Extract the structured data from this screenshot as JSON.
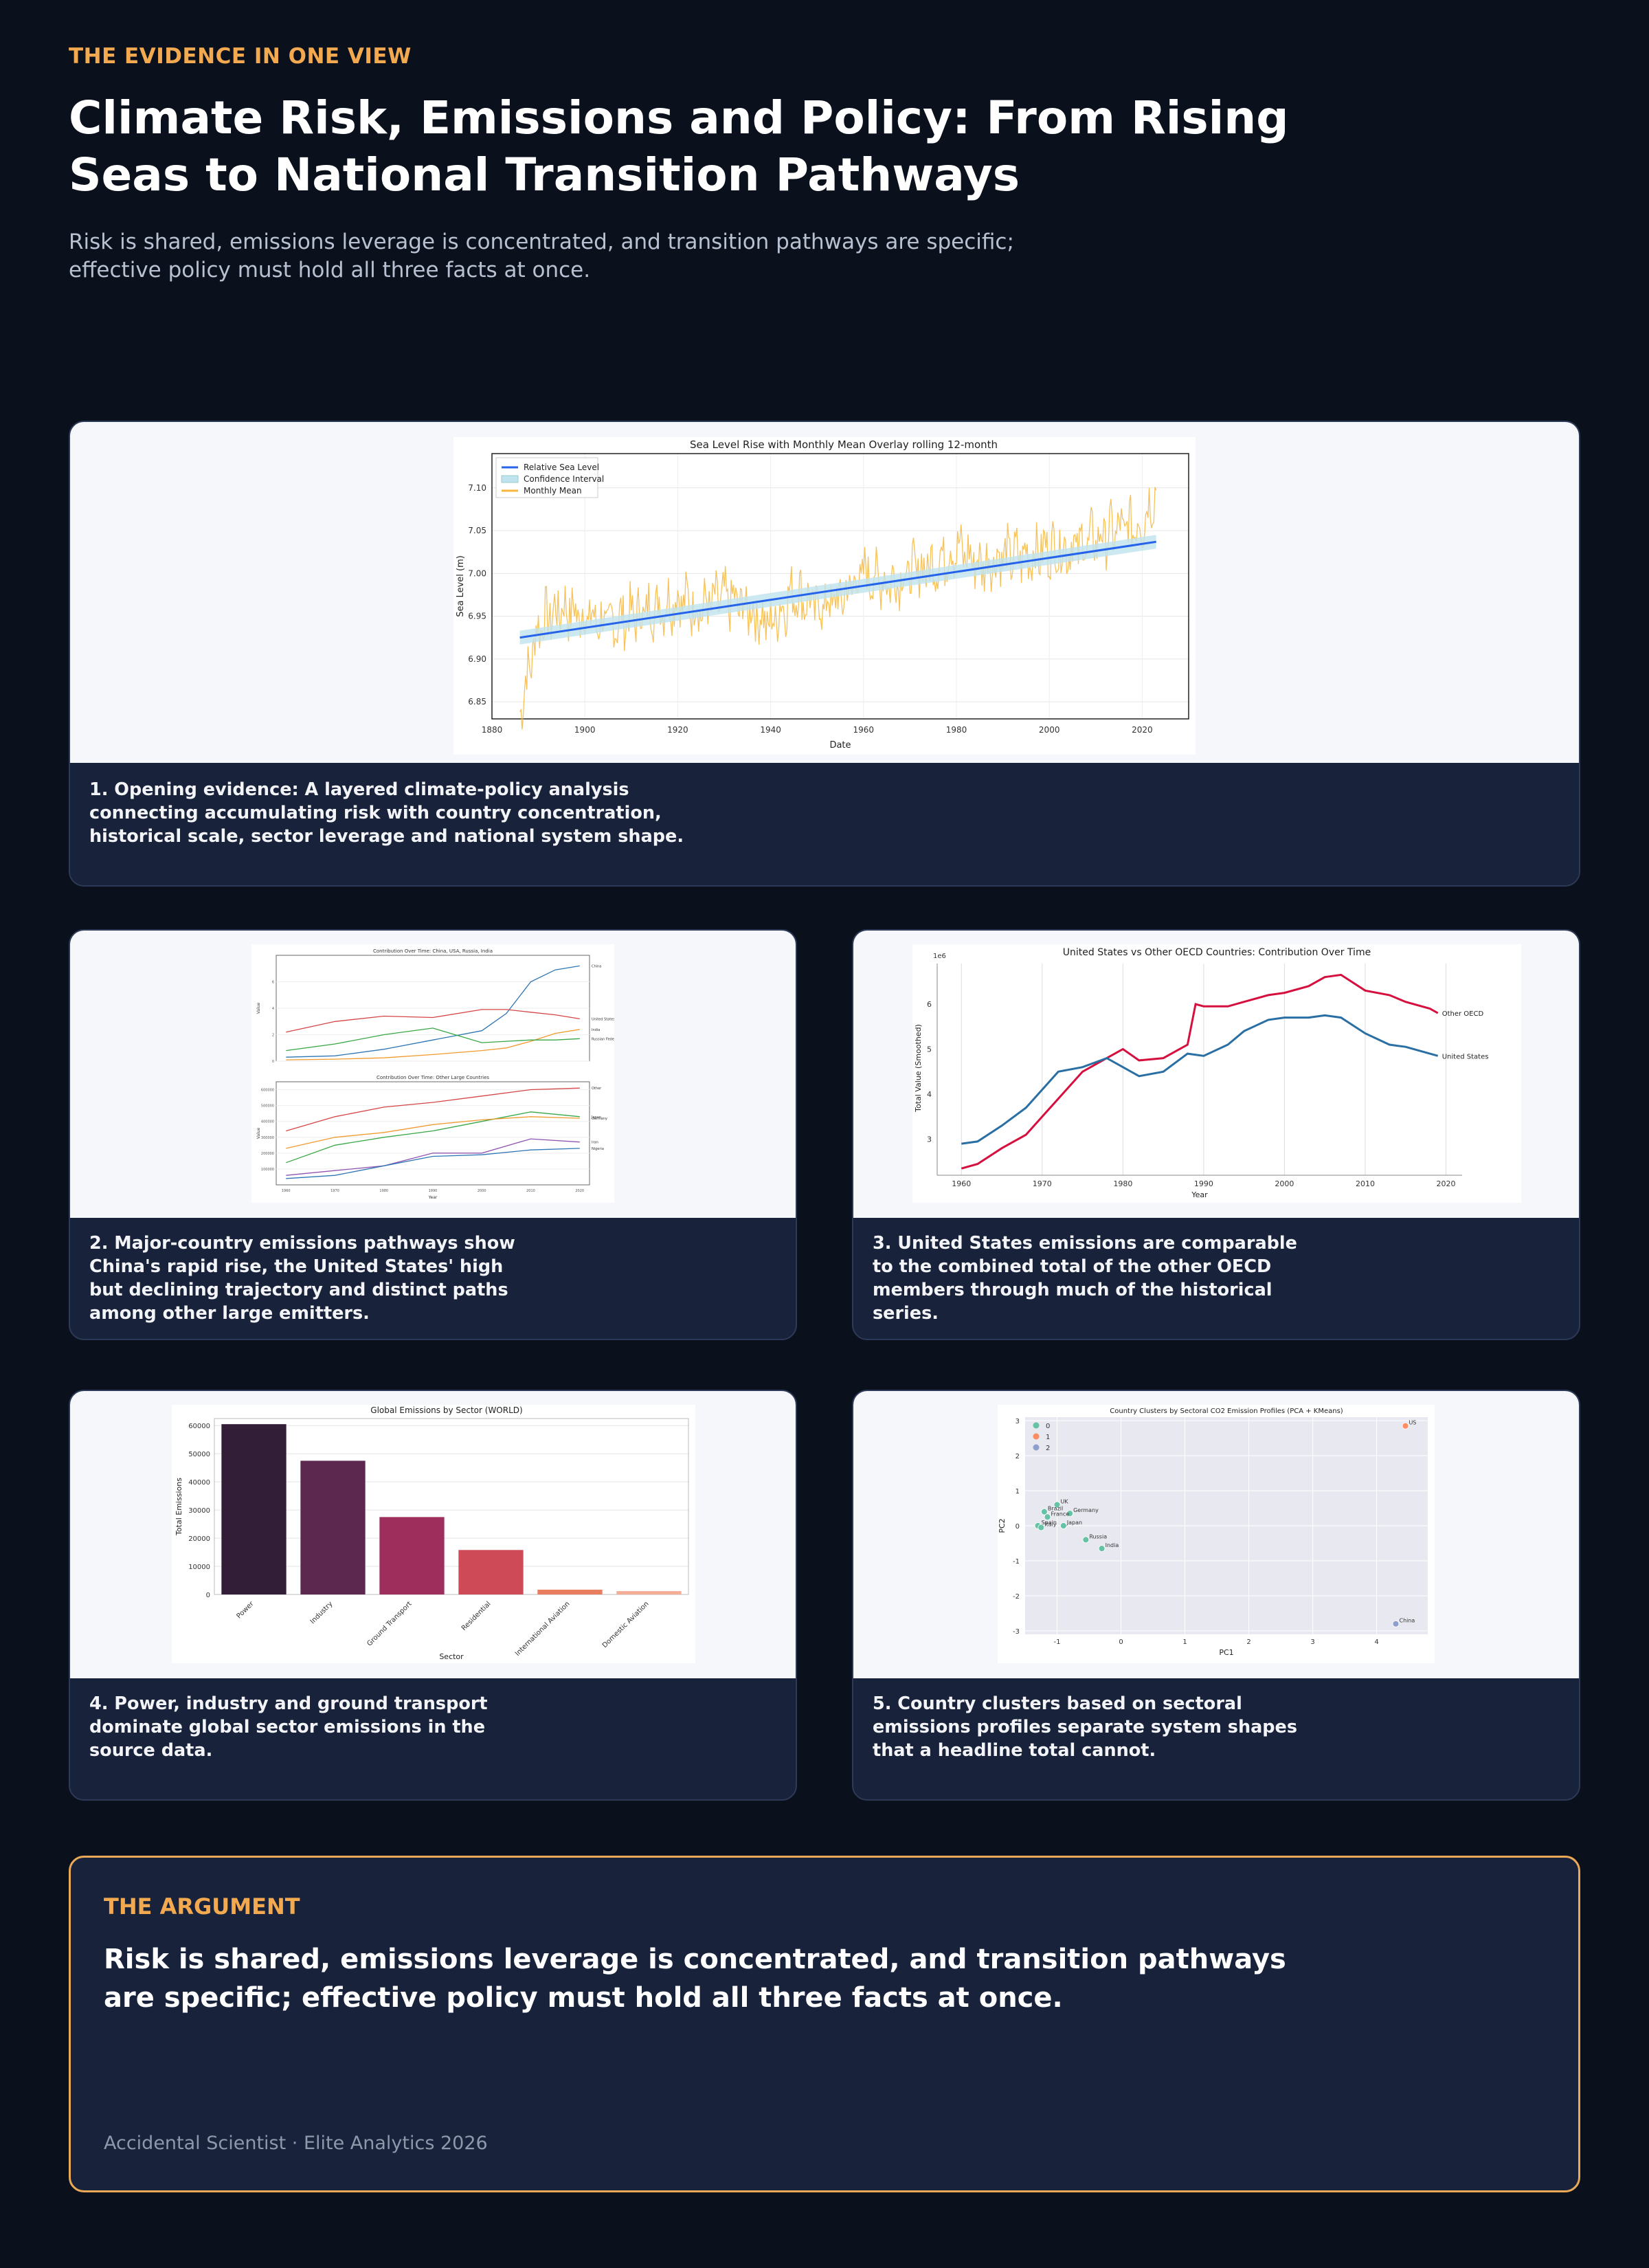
{
  "header": {
    "eyebrow": "THE EVIDENCE IN ONE VIEW",
    "title": "Climate Risk, Emissions and Policy: From Rising Seas to National Transition Pathways",
    "subtitle": "Risk is shared, emissions leverage is concentrated, and transition pathways are specific; effective policy must hold all three facts at once."
  },
  "colors": {
    "background": "#0b111c",
    "card": "#18223a",
    "accent": "#f2a94f",
    "panel": "#f6f7fb"
  },
  "cards": [
    {
      "caption": "1. Opening evidence: A layered climate-policy analysis connecting accumulating risk with country concentration, historical scale, sector leverage and national system shape."
    },
    {
      "caption": "2. Major-country emissions pathways show China's rapid rise, the United States' high but declining trajectory and distinct paths among other large emitters."
    },
    {
      "caption": "3. United States emissions are comparable to the combined total of the other OECD members through much of the historical series."
    },
    {
      "caption": "4. Power, industry and ground transport dominate global sector emissions in the source data."
    },
    {
      "caption": "5. Country clusters based on sectoral emissions profiles separate system shapes that a headline total cannot."
    }
  ],
  "chart_data": [
    {
      "type": "line",
      "title": "Sea Level Rise with Monthly Mean Overlay rolling 12-month",
      "xlabel": "Date",
      "ylabel": "Sea Level (m)",
      "xlim": [
        1880,
        2030
      ],
      "ylim": [
        6.83,
        7.14
      ],
      "x_ticks": [
        "1880",
        "1900",
        "1920",
        "1940",
        "1960",
        "1980",
        "2000",
        "2020"
      ],
      "y_ticks": [
        "6.85",
        "6.90",
        "6.95",
        "7.00",
        "7.05",
        "7.10"
      ],
      "legend": [
        "Relative Sea Level",
        "Confidence Interval",
        "Monthly Mean"
      ],
      "legend_position": "top-left",
      "series": [
        {
          "name": "Relative Sea Level",
          "color": "#2563eb",
          "x": [
            1886,
            2023
          ],
          "values": [
            6.925,
            7.037
          ]
        },
        {
          "name": "Confidence Interval",
          "color": "#bfe3ef",
          "x": [
            1886,
            2023
          ],
          "lower": [
            6.917,
            7.029
          ],
          "upper": [
            6.933,
            7.045
          ]
        },
        {
          "name": "Monthly Mean",
          "color": "#f6b73c",
          "x": [
            1886,
            1890,
            1895,
            1900,
            1905,
            1910,
            1915,
            1920,
            1925,
            1930,
            1935,
            1940,
            1945,
            1950,
            1955,
            1960,
            1965,
            1970,
            1975,
            1980,
            1985,
            1990,
            1995,
            2000,
            2005,
            2010,
            2015,
            2020,
            2023
          ],
          "values": [
            6.84,
            6.94,
            6.96,
            6.95,
            6.94,
            6.95,
            6.96,
            6.97,
            6.96,
            6.97,
            6.96,
            6.94,
            6.98,
            6.96,
            6.97,
            7.0,
            6.99,
            7.0,
            7.01,
            7.03,
            7.01,
            7.02,
            7.02,
            7.03,
            7.03,
            7.04,
            7.05,
            7.06,
            7.1
          ]
        }
      ]
    },
    {
      "type": "line",
      "panels": [
        {
          "title": "Contribution Over Time: China, USA, Russia, India",
          "xlabel": "Year",
          "ylabel": "Value",
          "series": [
            {
              "name": "China",
              "color": "#2f76b5",
              "x": [
                1960,
                1970,
                1980,
                1990,
                2000,
                2005,
                2010,
                2015,
                2020
              ],
              "values": [
                0.3,
                0.4,
                0.9,
                1.6,
                2.3,
                3.6,
                6.0,
                6.9,
                7.2
              ]
            },
            {
              "name": "United States",
              "color": "#d64545",
              "x": [
                1960,
                1970,
                1980,
                1990,
                2000,
                2005,
                2010,
                2015,
                2020
              ],
              "values": [
                2.2,
                3.0,
                3.4,
                3.3,
                3.9,
                3.9,
                3.7,
                3.5,
                3.2
              ]
            },
            {
              "name": "India",
              "color": "#f29a2e",
              "x": [
                1960,
                1970,
                1980,
                1990,
                2000,
                2005,
                2010,
                2015,
                2020
              ],
              "values": [
                0.1,
                0.15,
                0.25,
                0.5,
                0.8,
                1.0,
                1.5,
                2.1,
                2.4
              ]
            },
            {
              "name": "Russian Federation",
              "color": "#38a745",
              "x": [
                1960,
                1970,
                1980,
                1990,
                2000,
                2005,
                2010,
                2015,
                2020
              ],
              "values": [
                0.8,
                1.3,
                2.0,
                2.5,
                1.4,
                1.5,
                1.6,
                1.6,
                1.7
              ]
            }
          ]
        },
        {
          "title": "Contribution Over Time: Other Large Countries",
          "xlabel": "Year",
          "ylabel": "Value",
          "series": [
            {
              "name": "Other",
              "color": "#d64545",
              "x": [
                1960,
                1970,
                1980,
                1990,
                2000,
                2010,
                2020
              ],
              "values": [
                340000,
                430000,
                490000,
                520000,
                560000,
                600000,
                610000
              ]
            },
            {
              "name": "Japan",
              "color": "#38a745",
              "x": [
                1960,
                1970,
                1980,
                1990,
                2000,
                2010,
                2020
              ],
              "values": [
                140000,
                250000,
                300000,
                340000,
                400000,
                460000,
                430000
              ]
            },
            {
              "name": "Germany",
              "color": "#f29a2e",
              "x": [
                1960,
                1970,
                1980,
                1990,
                2000,
                2010,
                2020
              ],
              "values": [
                230000,
                300000,
                330000,
                380000,
                410000,
                430000,
                420000
              ]
            },
            {
              "name": "Iran",
              "color": "#9055b0",
              "x": [
                1960,
                1970,
                1980,
                1990,
                2000,
                2010,
                2020
              ],
              "values": [
                60000,
                90000,
                120000,
                200000,
                200000,
                290000,
                270000
              ]
            },
            {
              "name": "Nigeria",
              "color": "#2f76b5",
              "x": [
                1960,
                1970,
                1980,
                1990,
                2000,
                2010,
                2020
              ],
              "values": [
                40000,
                60000,
                120000,
                180000,
                190000,
                220000,
                230000
              ]
            }
          ]
        }
      ]
    },
    {
      "type": "line",
      "title": "United States vs Other OECD Countries: Contribution Over Time",
      "xlabel": "Year",
      "ylabel": "Total Value (Smoothed)",
      "scale_label": "1e6",
      "xlim": [
        1957,
        2022
      ],
      "ylim": [
        2.2,
        6.9
      ],
      "x_ticks": [
        "1960",
        "1970",
        "1980",
        "1990",
        "2000",
        "2010",
        "2020"
      ],
      "y_ticks": [
        "3",
        "4",
        "5",
        "6"
      ],
      "series": [
        {
          "name": "Other OECD",
          "color": "#d6103e",
          "x": [
            1960,
            1962,
            1965,
            1968,
            1970,
            1972,
            1975,
            1978,
            1980,
            1982,
            1985,
            1988,
            1989,
            1990,
            1993,
            1995,
            1998,
            2000,
            2003,
            2005,
            2007,
            2010,
            2013,
            2015,
            2018,
            2019
          ],
          "values": [
            2.35,
            2.45,
            2.8,
            3.1,
            3.5,
            3.9,
            4.5,
            4.8,
            5.0,
            4.75,
            4.8,
            5.1,
            6.0,
            5.95,
            5.95,
            6.05,
            6.2,
            6.25,
            6.4,
            6.6,
            6.65,
            6.3,
            6.2,
            6.05,
            5.9,
            5.8
          ]
        },
        {
          "name": "United States",
          "color": "#2a6fa3",
          "x": [
            1960,
            1962,
            1965,
            1968,
            1970,
            1972,
            1975,
            1978,
            1980,
            1982,
            1985,
            1988,
            1990,
            1993,
            1995,
            1998,
            2000,
            2003,
            2005,
            2007,
            2010,
            2013,
            2015,
            2018,
            2019
          ],
          "values": [
            2.9,
            2.95,
            3.3,
            3.7,
            4.1,
            4.5,
            4.6,
            4.8,
            4.6,
            4.4,
            4.5,
            4.9,
            4.85,
            5.1,
            5.4,
            5.65,
            5.7,
            5.7,
            5.75,
            5.7,
            5.35,
            5.1,
            5.05,
            4.9,
            4.85
          ]
        }
      ]
    },
    {
      "type": "bar",
      "title": "Global Emissions by Sector (WORLD)",
      "xlabel": "Sector",
      "ylabel": "Total Emissions",
      "ylim": [
        0,
        62500
      ],
      "y_ticks": [
        "0",
        "10000",
        "20000",
        "30000",
        "40000",
        "50000",
        "60000"
      ],
      "categories": [
        "Power",
        "Industry",
        "Ground Transport",
        "Residential",
        "International Aviation",
        "Domestic Aviation"
      ],
      "values": [
        60500,
        47500,
        27500,
        15800,
        1700,
        1200
      ],
      "colors": [
        "#321e36",
        "#5d2850",
        "#9e2e5c",
        "#cf4a57",
        "#e87e5f",
        "#f4ad96"
      ]
    },
    {
      "type": "scatter",
      "title": "Country Clusters by Sectoral CO2 Emission Profiles (PCA + KMeans)",
      "xlabel": "PC1",
      "ylabel": "PC2",
      "xlim": [
        -1.5,
        4.8
      ],
      "ylim": [
        -3.1,
        3.1
      ],
      "x_ticks": [
        "-1",
        "0",
        "1",
        "2",
        "3",
        "4"
      ],
      "y_ticks": [
        "-3",
        "-2",
        "-1",
        "0",
        "1",
        "2",
        "3"
      ],
      "legend": [
        "0",
        "1",
        "2"
      ],
      "legend_position": "top-left",
      "series": [
        {
          "name": "0",
          "color": "#66c2a5",
          "points": [
            {
              "x": -1.0,
              "y": 0.6,
              "label": "UK"
            },
            {
              "x": -1.2,
              "y": 0.4,
              "label": "Brazil"
            },
            {
              "x": -0.8,
              "y": 0.35,
              "label": "Germany"
            },
            {
              "x": -1.15,
              "y": 0.25,
              "label": "France"
            },
            {
              "x": -0.9,
              "y": 0.0,
              "label": "Japan"
            },
            {
              "x": -1.3,
              "y": 0.0,
              "label": "Spain"
            },
            {
              "x": -1.25,
              "y": -0.05,
              "label": "Italy"
            },
            {
              "x": -0.55,
              "y": -0.4,
              "label": "Russia"
            },
            {
              "x": -0.3,
              "y": -0.65,
              "label": "India"
            }
          ]
        },
        {
          "name": "1",
          "color": "#fc8d62",
          "points": [
            {
              "x": 4.45,
              "y": 2.85,
              "label": "US"
            }
          ]
        },
        {
          "name": "2",
          "color": "#8da0cb",
          "points": [
            {
              "x": 4.3,
              "y": -2.8,
              "label": "China"
            }
          ]
        }
      ]
    }
  ],
  "argument": {
    "eyebrow": "THE ARGUMENT",
    "text": "Risk is shared, emissions leverage is concentrated, and transition pathways are specific; effective policy must hold all three facts at once.",
    "footer": "Accidental Scientist · Elite Analytics 2026"
  }
}
